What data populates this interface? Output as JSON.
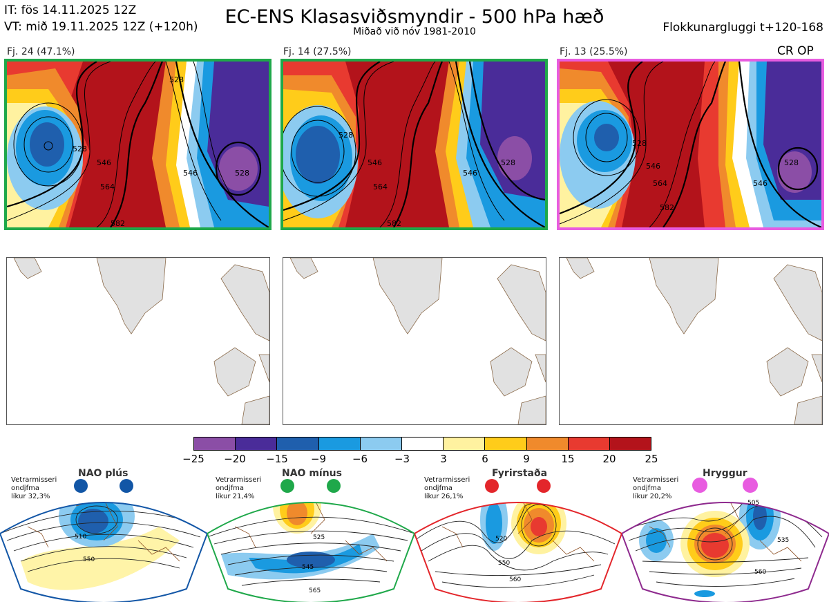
{
  "header": {
    "it_line": "IT: fös 14.11.2025 12Z",
    "vt_line": "VT: mið 19.11.2025 12Z  (+120h)",
    "title": "EC-ENS Klasasviðsmyndir - 500 hPa hæð",
    "subtitle": "Miðað við nóv 1981-2010",
    "window": "Flokkunargluggi t+120-168"
  },
  "clusters": [
    {
      "label": "Fj. 24 (47.1%)",
      "members": 24,
      "percent": 47.1,
      "frame_color": "#1fa84a",
      "badge": "",
      "contours": [
        "528",
        "546",
        "564",
        "582",
        "528",
        "546",
        "528"
      ]
    },
    {
      "label": "Fj. 14 (27.5%)",
      "members": 14,
      "percent": 27.5,
      "frame_color": "#1fa84a",
      "badge": "",
      "contours": [
        "528",
        "546",
        "564",
        "582",
        "546",
        "528"
      ]
    },
    {
      "label": "Fj. 13 (25.5%)",
      "members": 13,
      "percent": 25.5,
      "frame_color": "#e85ce0",
      "badge": "CR OP",
      "contours": [
        "528",
        "546",
        "564",
        "582",
        "546",
        "528"
      ]
    }
  ],
  "colorbar": {
    "ticks": [
      "−25",
      "−20",
      "−15",
      "−9",
      "−6",
      "−3",
      "3",
      "6",
      "9",
      "15",
      "20",
      "25"
    ],
    "colors": [
      "#8b4ea6",
      "#4a2c99",
      "#1f5fad",
      "#1a9ae0",
      "#8ccbf0",
      "#ffffff",
      "#fff2a0",
      "#ffcc1a",
      "#f08a2c",
      "#e83a30",
      "#b3131b"
    ]
  },
  "regimes": [
    {
      "title": "NAO plús",
      "note_1": "Vetrarmisseri",
      "note_2": "ondjfma",
      "note_3": "líkur 32,3%",
      "color": "#1256a6",
      "labels": [
        "510",
        "550"
      ]
    },
    {
      "title": "NAO mínus",
      "note_1": "Vetrarmisseri",
      "note_2": "ondjfma",
      "note_3": "líkur 21,4%",
      "color": "#1fa84a",
      "labels": [
        "525",
        "545",
        "565"
      ]
    },
    {
      "title": "Fyrirstaða",
      "note_1": "Vetrarmisseri",
      "note_2": "ondjfma",
      "note_3": "líkur 26,1%",
      "color": "#e3262b",
      "labels": [
        "520",
        "550",
        "560"
      ]
    },
    {
      "title": "Hryggur",
      "note_1": "Vetrarmisseri",
      "note_2": "ondjfma",
      "note_3": "líkur 20,2%",
      "color": "#e85ce0",
      "labels": [
        "505",
        "535",
        "560"
      ]
    }
  ]
}
